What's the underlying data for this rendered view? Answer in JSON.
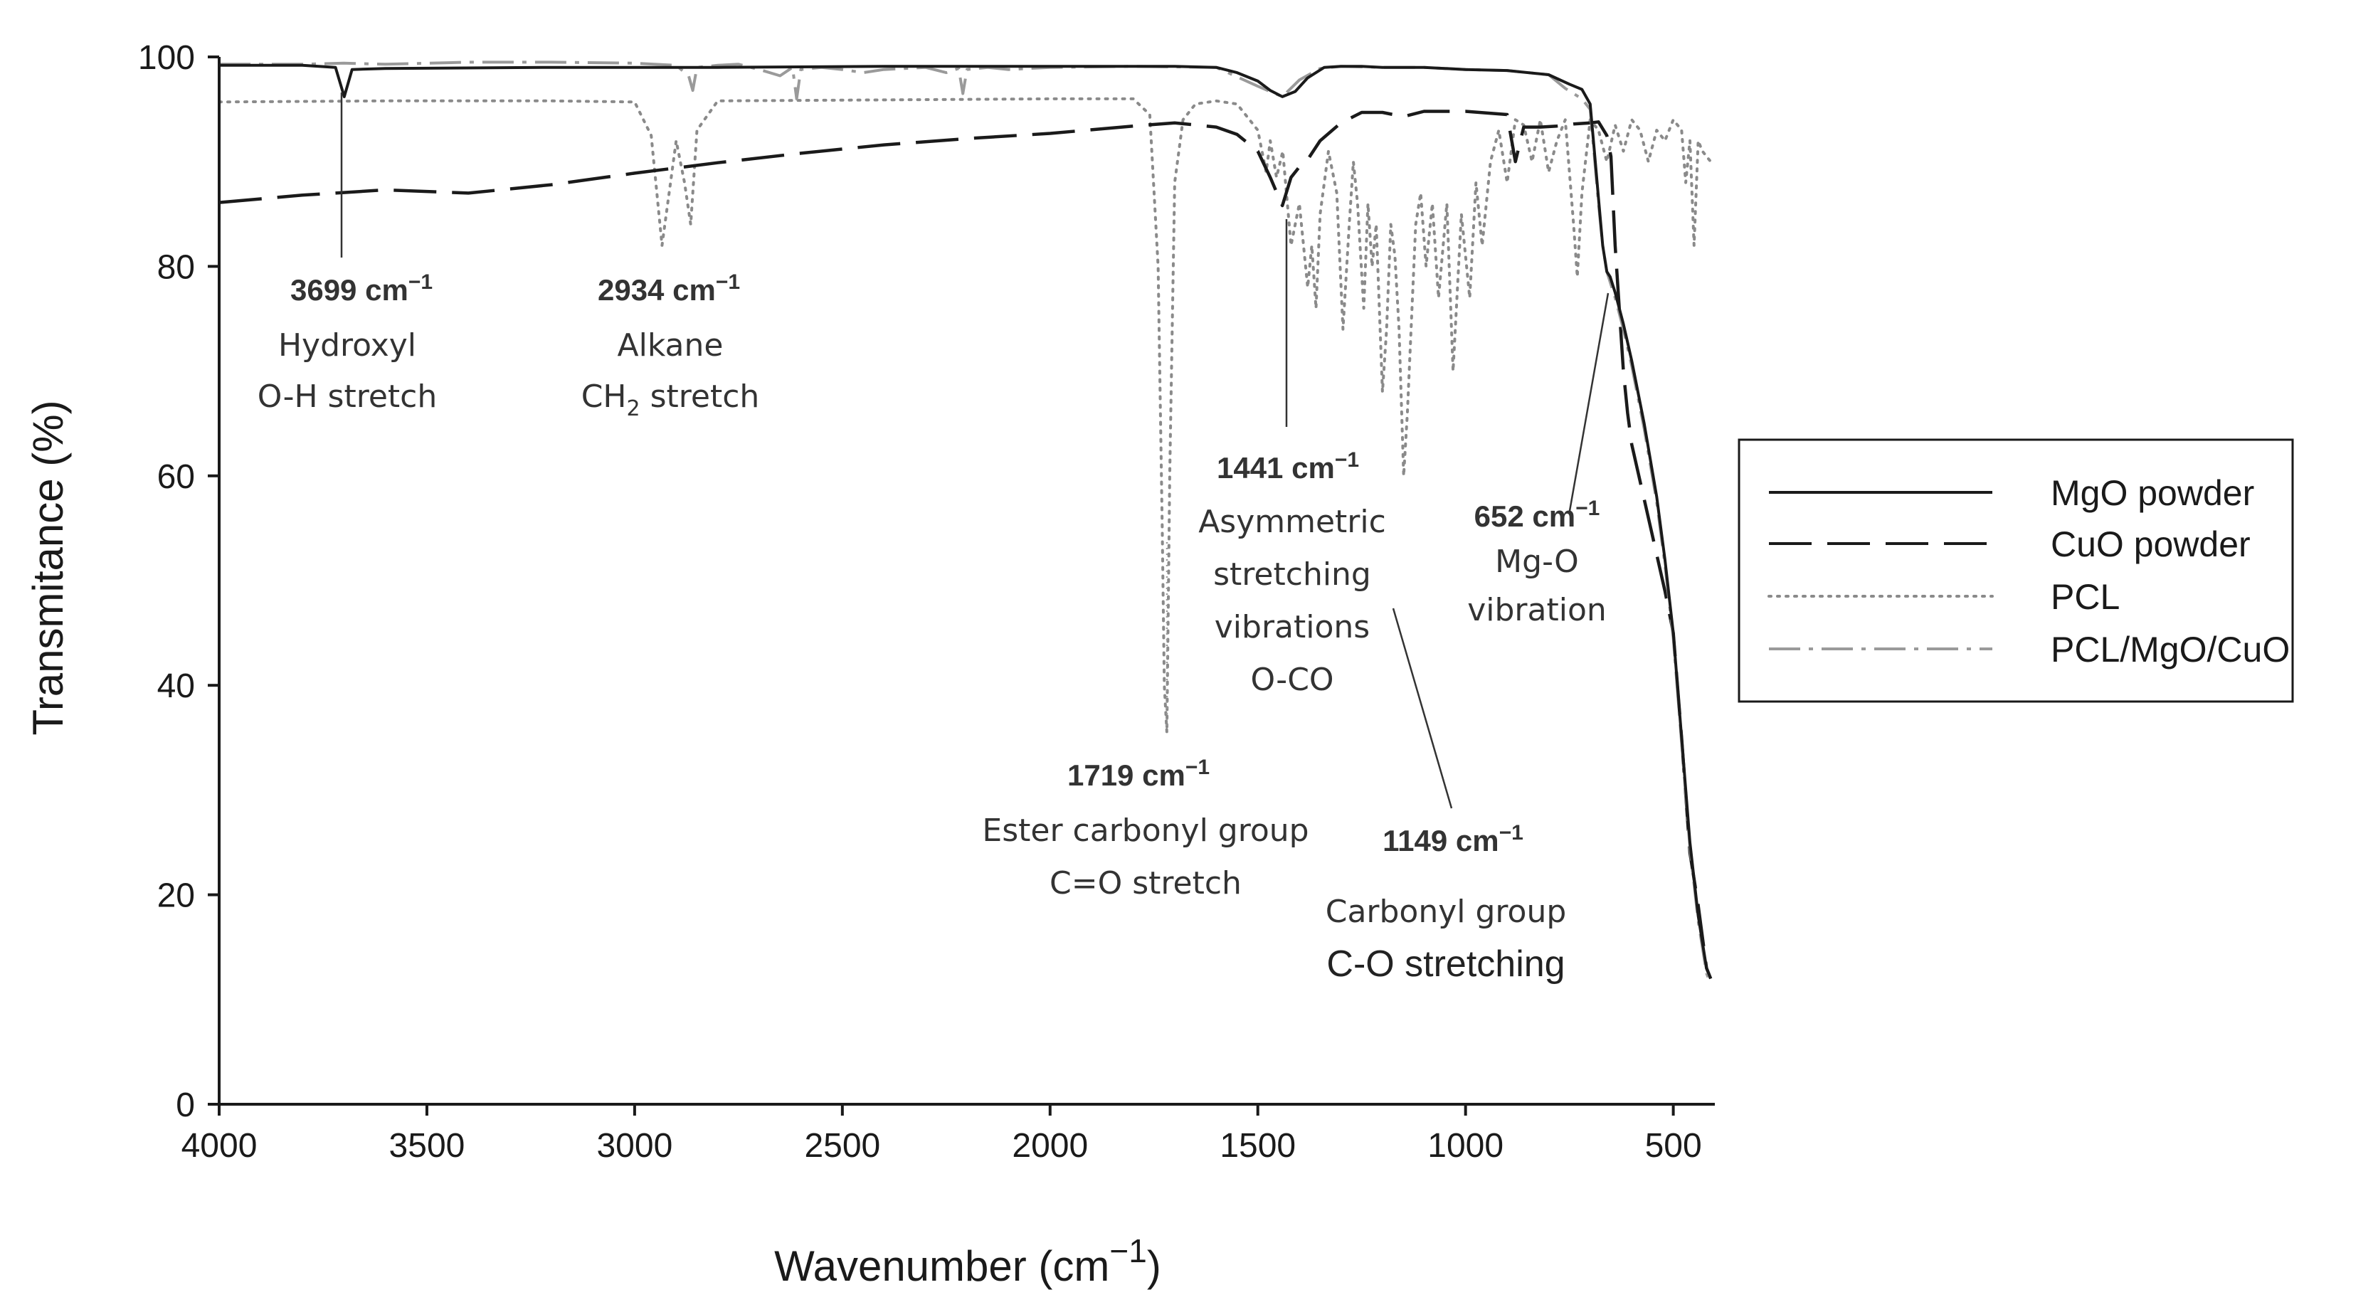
{
  "chart_data": {
    "type": "line",
    "xlabel": "Wavenumber (cm",
    "xlabel_exp": "−1",
    "xlabel_close": ")",
    "ylabel": "Transmitance (%)",
    "xlim": [
      4000,
      400
    ],
    "ylim": [
      0,
      100
    ],
    "x_ticks": [
      4000,
      3500,
      3000,
      2500,
      2000,
      1500,
      1000,
      500
    ],
    "x_tick_labels": [
      "4000",
      "3500",
      "3000",
      "2500",
      "2000",
      "1500",
      "1000",
      "500"
    ],
    "y_ticks": [
      0,
      20,
      40,
      60,
      80,
      100
    ],
    "y_tick_labels": [
      "0",
      "20",
      "40",
      "60",
      "80",
      "100"
    ],
    "legend": {
      "position": "right",
      "entries": [
        "MgO powder",
        "CuO powder",
        "PCL",
        "PCL/MgO/CuO"
      ]
    },
    "series": [
      {
        "name": "MgO powder",
        "style": "solid",
        "color": "#1a1a1a",
        "x": [
          4000,
          3800,
          3720,
          3699,
          3680,
          3600,
          3200,
          2800,
          2400,
          2000,
          1700,
          1600,
          1550,
          1500,
          1470,
          1441,
          1410,
          1380,
          1340,
          1300,
          1250,
          1200,
          1100,
          1000,
          900,
          800,
          750,
          720,
          700,
          690,
          680,
          670,
          660,
          652,
          640,
          620,
          600,
          570,
          540,
          520,
          500,
          480,
          460,
          440,
          420,
          410
        ],
        "values": [
          99.2,
          99.2,
          99.0,
          96.2,
          98.8,
          98.9,
          99.0,
          99.0,
          99.1,
          99.1,
          99.1,
          99.0,
          98.5,
          97.7,
          96.8,
          96.2,
          96.7,
          98.0,
          99.0,
          99.1,
          99.1,
          99.0,
          99.0,
          98.8,
          98.7,
          98.3,
          97.4,
          96.9,
          95.5,
          91.0,
          86.5,
          82.0,
          79.5,
          79.0,
          77.5,
          74.5,
          71.0,
          65.0,
          58.0,
          52.0,
          45.0,
          35.0,
          25.0,
          18.0,
          13.0,
          12.0
        ]
      },
      {
        "name": "CuO powder",
        "style": "dashed",
        "color": "#1a1a1a",
        "x": [
          4000,
          3800,
          3600,
          3400,
          3200,
          3000,
          2800,
          2600,
          2400,
          2200,
          2000,
          1800,
          1700,
          1600,
          1550,
          1500,
          1470,
          1441,
          1420,
          1400,
          1380,
          1350,
          1300,
          1250,
          1200,
          1150,
          1100,
          1000,
          900,
          880,
          860,
          820,
          780,
          740,
          700,
          680,
          660,
          650,
          640,
          630,
          620,
          610,
          600,
          560,
          520,
          500,
          480,
          460,
          440,
          420,
          410
        ],
        "values": [
          86.1,
          86.8,
          87.3,
          87.0,
          87.8,
          88.9,
          89.9,
          90.8,
          91.6,
          92.2,
          92.7,
          93.4,
          93.7,
          93.3,
          92.6,
          91.0,
          88.5,
          85.8,
          88.5,
          89.5,
          90.2,
          92.0,
          93.7,
          94.7,
          94.7,
          94.3,
          94.8,
          94.8,
          94.5,
          90.0,
          93.3,
          93.3,
          93.4,
          93.6,
          93.7,
          93.8,
          92.5,
          90.5,
          82.0,
          76.0,
          70.0,
          66.0,
          63.0,
          56.0,
          49.0,
          45.0,
          35.0,
          24.0,
          19.0,
          13.0,
          12.0
        ]
      },
      {
        "name": "PCL",
        "style": "dotted",
        "color": "#8a8a8a",
        "x": [
          4000,
          3600,
          3200,
          3000,
          2960,
          2934,
          2900,
          2880,
          2865,
          2850,
          2800,
          2400,
          2000,
          1800,
          1760,
          1740,
          1730,
          1725,
          1719,
          1712,
          1700,
          1680,
          1650,
          1600,
          1550,
          1500,
          1480,
          1470,
          1455,
          1440,
          1420,
          1400,
          1380,
          1370,
          1360,
          1350,
          1330,
          1310,
          1295,
          1280,
          1270,
          1260,
          1245,
          1235,
          1225,
          1215,
          1200,
          1190,
          1180,
          1170,
          1160,
          1149,
          1140,
          1120,
          1108,
          1095,
          1080,
          1065,
          1045,
          1030,
          1010,
          990,
          975,
          960,
          940,
          920,
          900,
          880,
          860,
          840,
          820,
          800,
          780,
          760,
          740,
          731,
          720,
          700,
          680,
          660,
          640,
          620,
          600,
          580,
          560,
          540,
          520,
          500,
          480,
          470,
          460,
          450,
          440,
          430,
          420,
          410
        ],
        "values": [
          95.7,
          95.8,
          95.8,
          95.7,
          92.5,
          82.0,
          92.0,
          88.0,
          84.0,
          93.0,
          95.8,
          95.9,
          96.0,
          96.0,
          94.5,
          80.0,
          55.0,
          40.0,
          35.5,
          60.0,
          88.0,
          94.0,
          95.5,
          95.8,
          95.5,
          93.0,
          89.0,
          92.0,
          88.5,
          91.0,
          82.0,
          86.0,
          78.0,
          82.0,
          76.0,
          85.0,
          91.0,
          87.0,
          74.0,
          84.0,
          90.0,
          86.0,
          76.0,
          86.0,
          80.0,
          84.0,
          68.0,
          74.0,
          84.0,
          81.0,
          74.0,
          60.0,
          66.0,
          84.0,
          87.0,
          80.0,
          86.0,
          77.0,
          86.0,
          70.0,
          85.0,
          77.0,
          88.0,
          82.0,
          90.0,
          93.0,
          88.0,
          94.0,
          93.5,
          90.0,
          94.0,
          89.0,
          92.0,
          94.0,
          84.0,
          79.0,
          87.0,
          94.0,
          93.0,
          90.0,
          93.5,
          91.0,
          94.0,
          93.0,
          90.0,
          93.0,
          92.0,
          94.0,
          93.0,
          88.0,
          92.0,
          82.0,
          92.0,
          91.0,
          90.5,
          90.0
        ]
      },
      {
        "name": "PCL/MgO/CuO",
        "style": "dashdot",
        "color": "#9a9a9a",
        "x": [
          4000,
          3800,
          3700,
          3600,
          3400,
          3200,
          3000,
          2900,
          2870,
          2860,
          2850,
          2800,
          2750,
          2700,
          2650,
          2620,
          2610,
          2600,
          2550,
          2500,
          2450,
          2400,
          2300,
          2250,
          2220,
          2210,
          2200,
          2150,
          2100,
          2000,
          1800,
          1600,
          1500,
          1441,
          1400,
          1350,
          1300,
          1200,
          1100,
          1000,
          900,
          800,
          760,
          720,
          700,
          690,
          680,
          670,
          660,
          652,
          640,
          620,
          600,
          570,
          540,
          520,
          500,
          480,
          460,
          440,
          420,
          410
        ],
        "values": [
          99.3,
          99.3,
          99.4,
          99.3,
          99.5,
          99.5,
          99.4,
          99.2,
          98.2,
          96.8,
          99.0,
          99.2,
          99.3,
          98.8,
          98.2,
          99.0,
          96.0,
          98.8,
          99.0,
          98.8,
          98.5,
          98.8,
          99.0,
          98.5,
          98.9,
          96.5,
          98.8,
          99.0,
          98.8,
          99.0,
          99.1,
          99.0,
          97.2,
          96.2,
          97.8,
          98.9,
          99.1,
          99.0,
          99.0,
          98.8,
          98.7,
          98.3,
          97.0,
          96.0,
          95.0,
          90.5,
          86.0,
          82.0,
          79.5,
          78.5,
          77.0,
          74.0,
          70.5,
          64.5,
          57.5,
          51.5,
          44.5,
          34.5,
          24.5,
          17.5,
          12.5,
          11.5
        ]
      }
    ],
    "annotations": [
      {
        "wavenumber": "3699 cm",
        "exp": "−1",
        "lines": [
          "Hydroxyl",
          "O-H stretch"
        ]
      },
      {
        "wavenumber": "2934 cm",
        "exp": "−1",
        "line1": "Alkane",
        "line2_pre": "CH",
        "line2_sub": "2",
        "line2_post": " stretch"
      },
      {
        "wavenumber": "1441 cm",
        "exp": "−1",
        "lines": [
          "Asymmetric",
          "stretching",
          "vibrations",
          "O-CO"
        ]
      },
      {
        "wavenumber": "652 cm",
        "exp": "−1",
        "lines": [
          "Mg-O",
          "vibration"
        ]
      },
      {
        "wavenumber": "1719 cm",
        "exp": "−1",
        "lines": [
          "Ester carbonyl group",
          "C=O stretch"
        ]
      },
      {
        "wavenumber": "1149 cm",
        "exp": "−1",
        "lines": [
          "Carbonyl group",
          "C-O stretching"
        ]
      }
    ]
  }
}
